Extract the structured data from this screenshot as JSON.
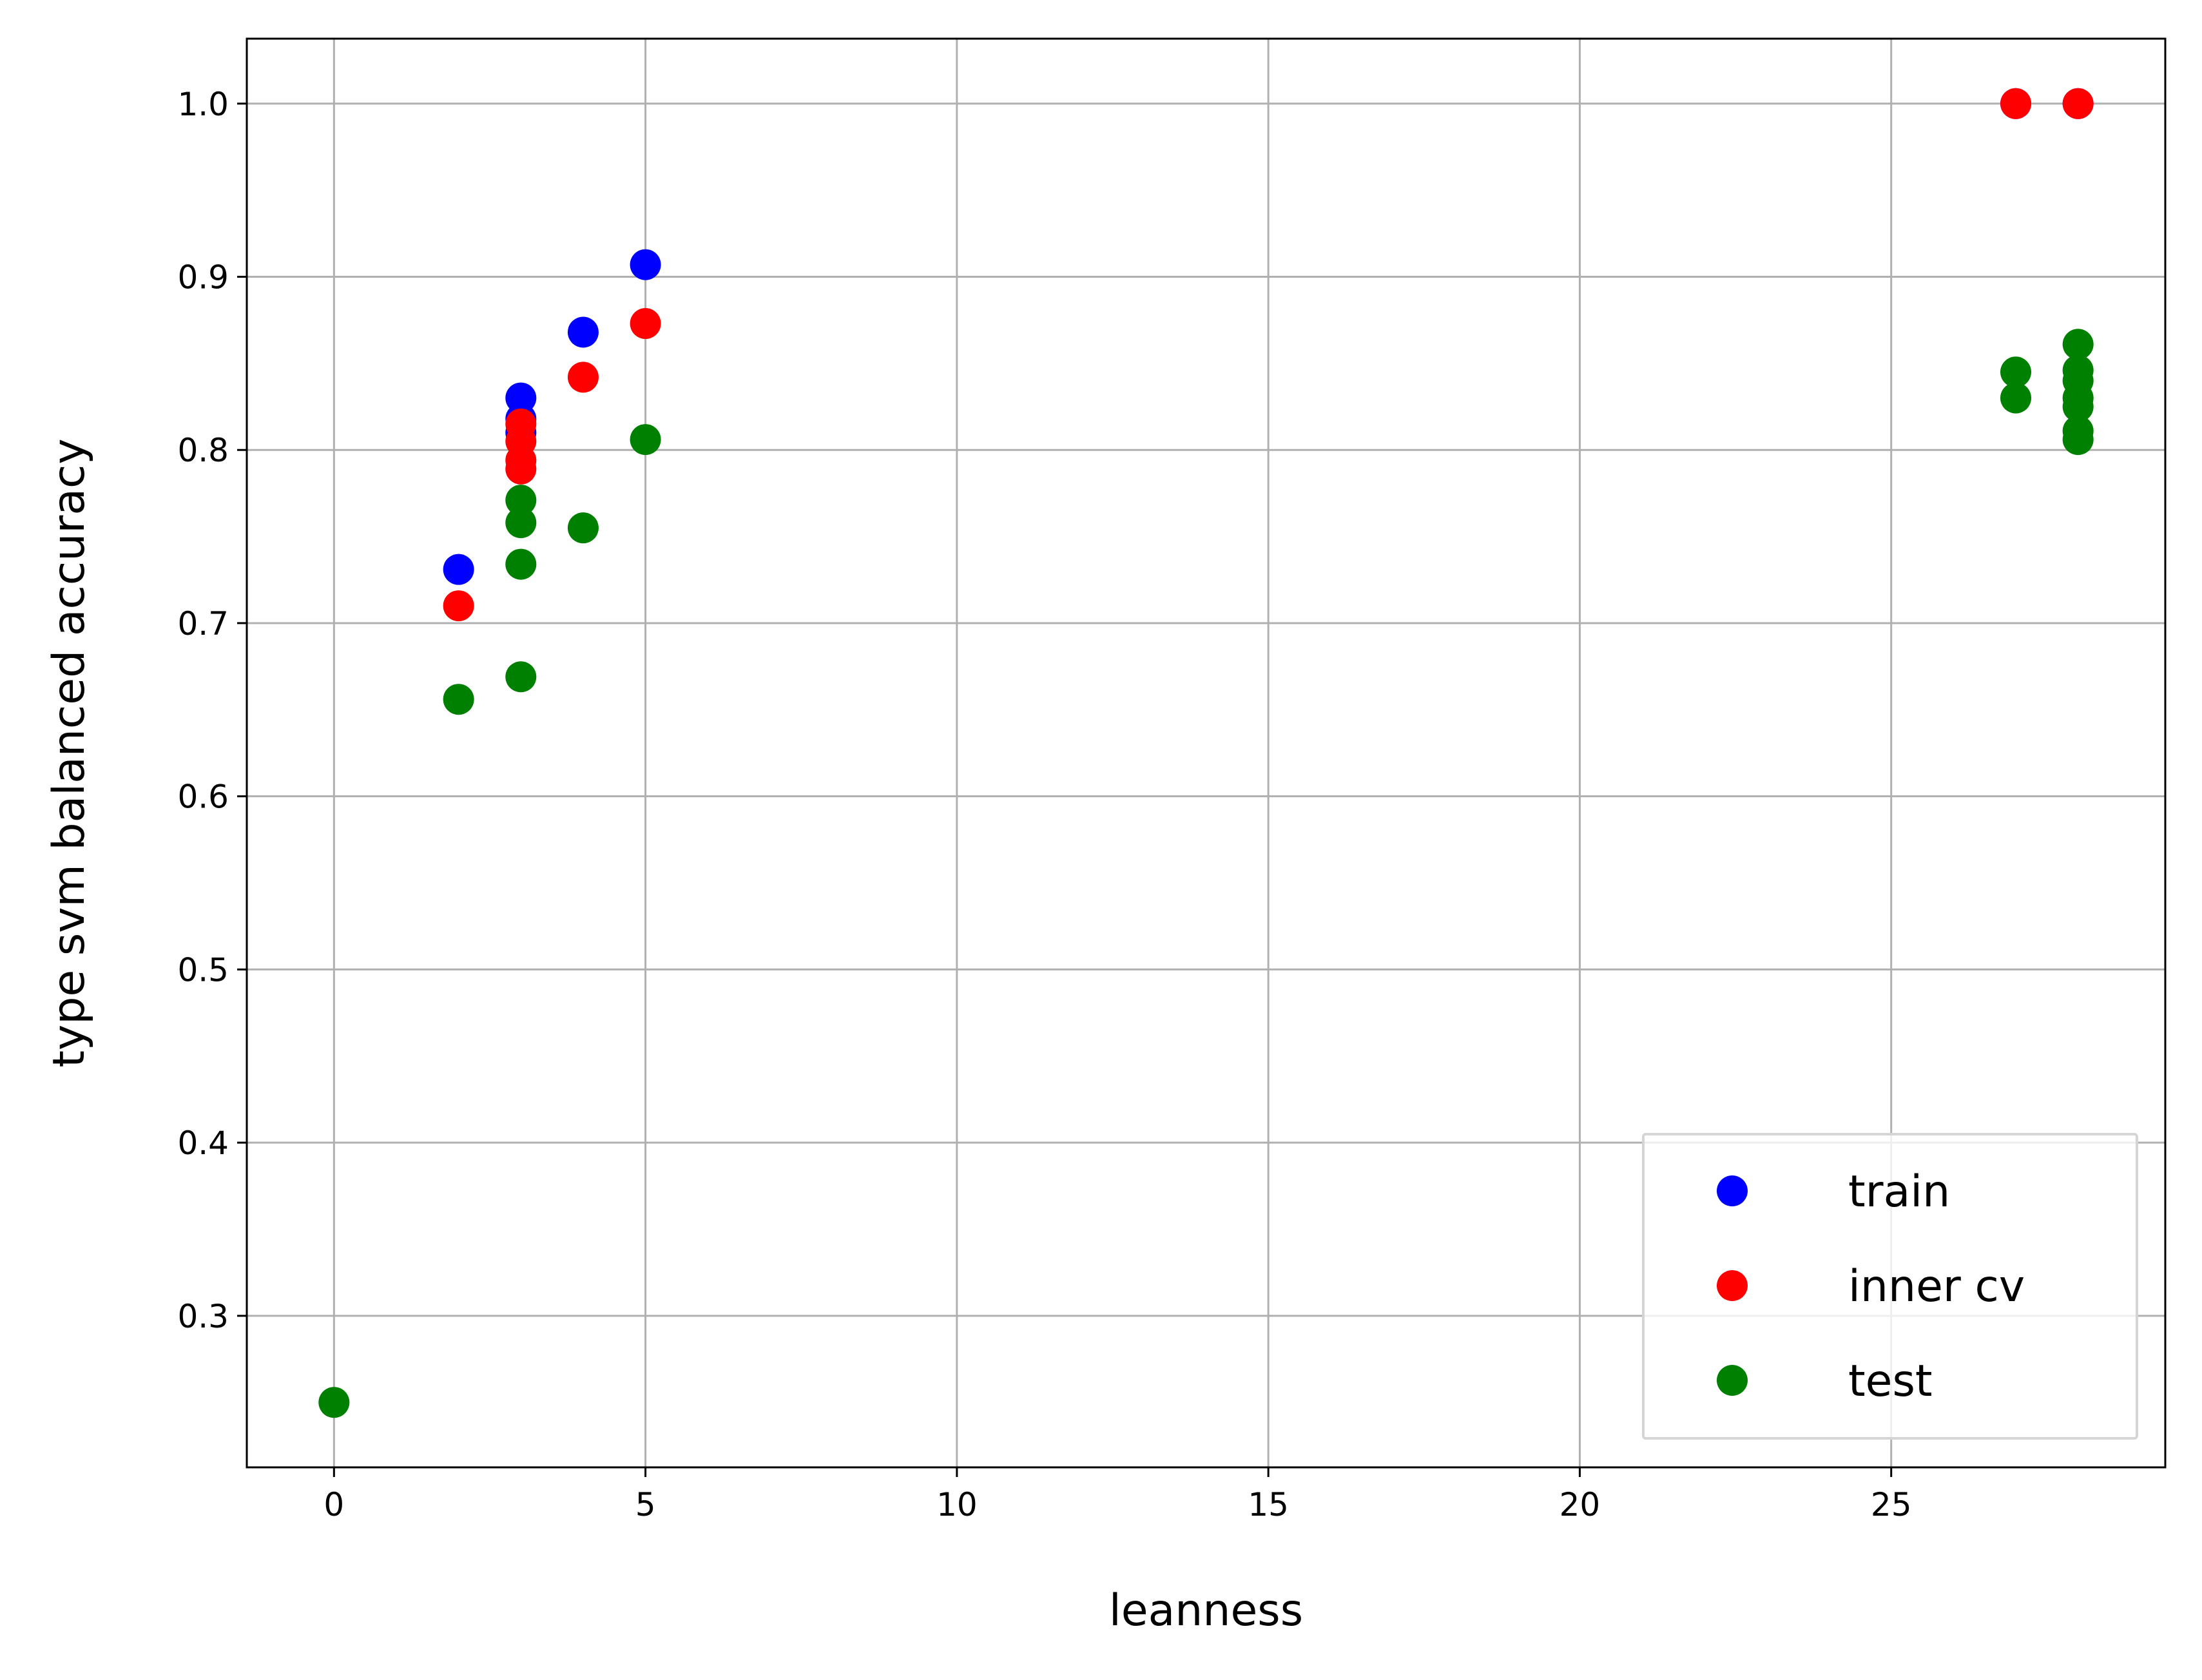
{
  "chart_data": {
    "type": "scatter",
    "xlabel": "leanness",
    "ylabel": "type svm balanced accuracy",
    "xlim": [
      -1.4,
      29.4
    ],
    "ylim": [
      0.2125,
      1.0375
    ],
    "xticks": [
      0,
      5,
      10,
      15,
      20,
      25
    ],
    "yticks": [
      0.3,
      0.4,
      0.5,
      0.6,
      0.7,
      0.8,
      0.9,
      1.0
    ],
    "xtick_labels": [
      "0",
      "5",
      "10",
      "15",
      "20",
      "25"
    ],
    "ytick_labels": [
      "0.3",
      "0.4",
      "0.5",
      "0.6",
      "0.7",
      "0.8",
      "0.9",
      "1.0"
    ],
    "grid": true,
    "legend_position": "lower right",
    "series": [
      {
        "name": "train",
        "color": "#0000ff",
        "points": [
          {
            "x": 2,
            "y": 0.731
          },
          {
            "x": 3,
            "y": 0.83
          },
          {
            "x": 3,
            "y": 0.818
          },
          {
            "x": 3,
            "y": 0.81
          },
          {
            "x": 4,
            "y": 0.868
          },
          {
            "x": 5,
            "y": 0.907
          },
          {
            "x": 27,
            "y": 1.0
          },
          {
            "x": 28,
            "y": 1.0
          }
        ]
      },
      {
        "name": "inner cv",
        "color": "#ff0000",
        "points": [
          {
            "x": 2,
            "y": 0.71
          },
          {
            "x": 3,
            "y": 0.815
          },
          {
            "x": 3,
            "y": 0.805
          },
          {
            "x": 3,
            "y": 0.794
          },
          {
            "x": 3,
            "y": 0.789
          },
          {
            "x": 4,
            "y": 0.842
          },
          {
            "x": 5,
            "y": 0.873
          },
          {
            "x": 27,
            "y": 1.0
          },
          {
            "x": 28,
            "y": 1.0
          }
        ]
      },
      {
        "name": "test",
        "color": "#008000",
        "points": [
          {
            "x": 0,
            "y": 0.25
          },
          {
            "x": 2,
            "y": 0.656
          },
          {
            "x": 3,
            "y": 0.771
          },
          {
            "x": 3,
            "y": 0.758
          },
          {
            "x": 3,
            "y": 0.734
          },
          {
            "x": 3,
            "y": 0.669
          },
          {
            "x": 4,
            "y": 0.755
          },
          {
            "x": 5,
            "y": 0.806
          },
          {
            "x": 27,
            "y": 0.845
          },
          {
            "x": 27,
            "y": 0.83
          },
          {
            "x": 28,
            "y": 0.861
          },
          {
            "x": 28,
            "y": 0.846
          },
          {
            "x": 28,
            "y": 0.84
          },
          {
            "x": 28,
            "y": 0.83
          },
          {
            "x": 28,
            "y": 0.825
          },
          {
            "x": 28,
            "y": 0.811
          },
          {
            "x": 28,
            "y": 0.806
          }
        ]
      }
    ]
  }
}
